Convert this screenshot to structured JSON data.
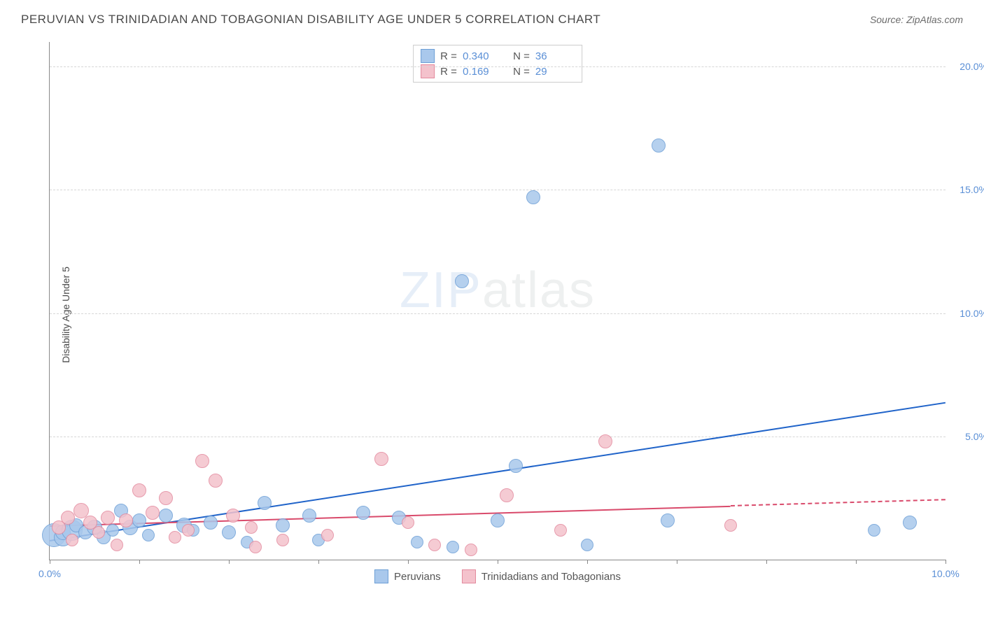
{
  "title": "PERUVIAN VS TRINIDADIAN AND TOBAGONIAN DISABILITY AGE UNDER 5 CORRELATION CHART",
  "source": "Source: ZipAtlas.com",
  "ylabel": "Disability Age Under 5",
  "watermark_left": "ZIP",
  "watermark_right": "atlas",
  "chart": {
    "type": "scatter",
    "xlim": [
      0,
      10
    ],
    "ylim": [
      0,
      21
    ],
    "x_ticks": [
      0,
      1,
      2,
      3,
      4,
      5,
      6,
      7,
      8,
      9,
      10
    ],
    "x_tick_labels": {
      "0": "0.0%",
      "10": "10.0%"
    },
    "y_ticks": [
      5,
      10,
      15,
      20
    ],
    "y_tick_labels": {
      "5": "5.0%",
      "10": "10.0%",
      "15": "15.0%",
      "20": "20.0%"
    },
    "grid_color": "#d6d6d6",
    "background_color": "#ffffff",
    "axis_color": "#888888",
    "label_color": "#5a8fd6",
    "series": [
      {
        "name": "Peruvians",
        "fill": "#a9c8ec",
        "stroke": "#6d9fd6",
        "trend_color": "#1f63c9",
        "r_value": "0.340",
        "n_value": "36",
        "trend": {
          "x1": 0.0,
          "y1": 0.8,
          "x2": 10.0,
          "y2": 6.4
        },
        "points": [
          {
            "x": 0.05,
            "y": 1.0,
            "r": 16
          },
          {
            "x": 0.15,
            "y": 0.9,
            "r": 12
          },
          {
            "x": 0.15,
            "y": 1.1,
            "r": 10
          },
          {
            "x": 0.25,
            "y": 1.2,
            "r": 14
          },
          {
            "x": 0.3,
            "y": 1.4,
            "r": 9
          },
          {
            "x": 0.4,
            "y": 1.1,
            "r": 9
          },
          {
            "x": 0.5,
            "y": 1.3,
            "r": 10
          },
          {
            "x": 0.6,
            "y": 0.9,
            "r": 9
          },
          {
            "x": 0.7,
            "y": 1.2,
            "r": 8
          },
          {
            "x": 0.8,
            "y": 2.0,
            "r": 9
          },
          {
            "x": 0.9,
            "y": 1.3,
            "r": 10
          },
          {
            "x": 1.0,
            "y": 1.6,
            "r": 9
          },
          {
            "x": 1.1,
            "y": 1.0,
            "r": 8
          },
          {
            "x": 1.3,
            "y": 1.8,
            "r": 9
          },
          {
            "x": 1.5,
            "y": 1.4,
            "r": 10
          },
          {
            "x": 1.6,
            "y": 1.2,
            "r": 8
          },
          {
            "x": 1.8,
            "y": 1.5,
            "r": 9
          },
          {
            "x": 2.0,
            "y": 1.1,
            "r": 9
          },
          {
            "x": 2.2,
            "y": 0.7,
            "r": 8
          },
          {
            "x": 2.4,
            "y": 2.3,
            "r": 9
          },
          {
            "x": 2.6,
            "y": 1.4,
            "r": 9
          },
          {
            "x": 2.9,
            "y": 1.8,
            "r": 9
          },
          {
            "x": 3.0,
            "y": 0.8,
            "r": 8
          },
          {
            "x": 3.5,
            "y": 1.9,
            "r": 9
          },
          {
            "x": 3.9,
            "y": 1.7,
            "r": 9
          },
          {
            "x": 4.1,
            "y": 0.7,
            "r": 8
          },
          {
            "x": 4.5,
            "y": 0.5,
            "r": 8
          },
          {
            "x": 4.6,
            "y": 11.3,
            "r": 9
          },
          {
            "x": 5.0,
            "y": 1.6,
            "r": 9
          },
          {
            "x": 5.2,
            "y": 3.8,
            "r": 9
          },
          {
            "x": 5.4,
            "y": 14.7,
            "r": 9
          },
          {
            "x": 6.0,
            "y": 0.6,
            "r": 8
          },
          {
            "x": 6.8,
            "y": 16.8,
            "r": 9
          },
          {
            "x": 6.9,
            "y": 1.6,
            "r": 9
          },
          {
            "x": 9.2,
            "y": 1.2,
            "r": 8
          },
          {
            "x": 9.6,
            "y": 1.5,
            "r": 9
          }
        ]
      },
      {
        "name": "Trinidadians and Tobagonians",
        "fill": "#f4c2cc",
        "stroke": "#e38a9e",
        "trend_color": "#d94a6b",
        "r_value": "0.169",
        "n_value": "29",
        "trend": {
          "x1": 0.0,
          "y1": 1.4,
          "x2": 7.6,
          "y2": 2.2
        },
        "trend_ext": {
          "x1": 7.6,
          "y1": 2.2,
          "x2": 10.0,
          "y2": 2.45
        },
        "points": [
          {
            "x": 0.1,
            "y": 1.3,
            "r": 9
          },
          {
            "x": 0.2,
            "y": 1.7,
            "r": 9
          },
          {
            "x": 0.25,
            "y": 0.8,
            "r": 8
          },
          {
            "x": 0.35,
            "y": 2.0,
            "r": 10
          },
          {
            "x": 0.45,
            "y": 1.5,
            "r": 9
          },
          {
            "x": 0.55,
            "y": 1.1,
            "r": 8
          },
          {
            "x": 0.65,
            "y": 1.7,
            "r": 9
          },
          {
            "x": 0.75,
            "y": 0.6,
            "r": 8
          },
          {
            "x": 0.85,
            "y": 1.6,
            "r": 9
          },
          {
            "x": 1.0,
            "y": 2.8,
            "r": 9
          },
          {
            "x": 1.15,
            "y": 1.9,
            "r": 9
          },
          {
            "x": 1.3,
            "y": 2.5,
            "r": 9
          },
          {
            "x": 1.4,
            "y": 0.9,
            "r": 8
          },
          {
            "x": 1.55,
            "y": 1.2,
            "r": 8
          },
          {
            "x": 1.7,
            "y": 4.0,
            "r": 9
          },
          {
            "x": 1.85,
            "y": 3.2,
            "r": 9
          },
          {
            "x": 2.05,
            "y": 1.8,
            "r": 9
          },
          {
            "x": 2.25,
            "y": 1.3,
            "r": 8
          },
          {
            "x": 2.3,
            "y": 0.5,
            "r": 8
          },
          {
            "x": 2.6,
            "y": 0.8,
            "r": 8
          },
          {
            "x": 3.1,
            "y": 1.0,
            "r": 8
          },
          {
            "x": 3.7,
            "y": 4.1,
            "r": 9
          },
          {
            "x": 4.0,
            "y": 1.5,
            "r": 8
          },
          {
            "x": 4.3,
            "y": 0.6,
            "r": 8
          },
          {
            "x": 4.7,
            "y": 0.4,
            "r": 8
          },
          {
            "x": 5.1,
            "y": 2.6,
            "r": 9
          },
          {
            "x": 5.7,
            "y": 1.2,
            "r": 8
          },
          {
            "x": 6.2,
            "y": 4.8,
            "r": 9
          },
          {
            "x": 7.6,
            "y": 1.4,
            "r": 8
          }
        ]
      }
    ]
  },
  "legend_top": [
    {
      "swatch_fill": "#a9c8ec",
      "swatch_stroke": "#6d9fd6",
      "r": "0.340",
      "n": "36"
    },
    {
      "swatch_fill": "#f4c2cc",
      "swatch_stroke": "#e38a9e",
      "r": "0.169",
      "n": "29"
    }
  ],
  "legend_bottom": [
    {
      "swatch_fill": "#a9c8ec",
      "swatch_stroke": "#6d9fd6",
      "label": "Peruvians"
    },
    {
      "swatch_fill": "#f4c2cc",
      "swatch_stroke": "#e38a9e",
      "label": "Trinidadians and Tobagonians"
    }
  ]
}
